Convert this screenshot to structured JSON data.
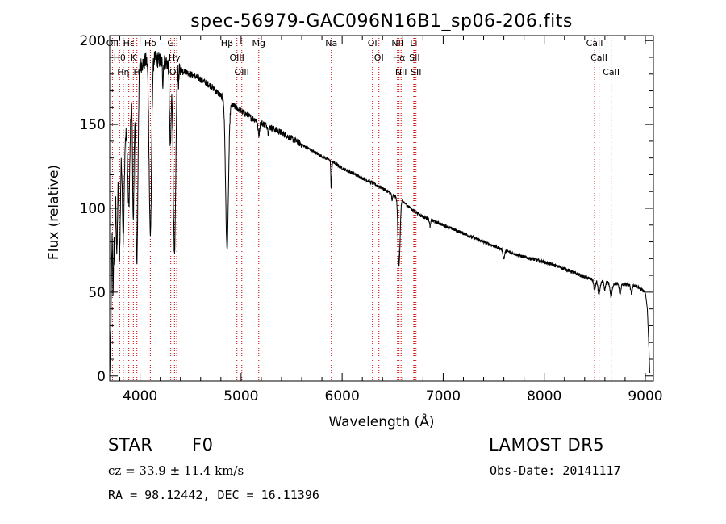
{
  "chart_data": {
    "type": "line",
    "title": "spec-56979-GAC096N16B1_sp06-206.fits",
    "xlabel": "Wavelength (Å)",
    "ylabel": "Flux (relative)",
    "xlim": [
      3700,
      9080
    ],
    "ylim": [
      -3,
      203
    ],
    "xticks": [
      4000,
      5000,
      6000,
      7000,
      8000,
      9000
    ],
    "yticks": [
      0,
      50,
      100,
      150,
      200
    ],
    "grid": false,
    "colors": {
      "spectrum": "#000000",
      "lines": "#cc0000"
    },
    "spectral_lines": [
      {
        "label": "OII",
        "wavelength": 3727
      },
      {
        "label": "Hθ",
        "wavelength": 3798
      },
      {
        "label": "Hη",
        "wavelength": 3835
      },
      {
        "label": "Hε",
        "wavelength": 3889
      },
      {
        "label": "K",
        "wavelength": 3934
      },
      {
        "label": "H",
        "wavelength": 3969
      },
      {
        "label": "Hδ",
        "wavelength": 4102
      },
      {
        "label": "G",
        "wavelength": 4304
      },
      {
        "label": "Hγ",
        "wavelength": 4341
      },
      {
        "label": "OIII",
        "wavelength": 4363
      },
      {
        "label": "Hβ",
        "wavelength": 4861
      },
      {
        "label": "OIII",
        "wavelength": 4959
      },
      {
        "label": "OIII",
        "wavelength": 5007
      },
      {
        "label": "Mg",
        "wavelength": 5175
      },
      {
        "label": "Na",
        "wavelength": 5893
      },
      {
        "label": "OI",
        "wavelength": 6300
      },
      {
        "label": "OI",
        "wavelength": 6364
      },
      {
        "label": "NII",
        "wavelength": 6548
      },
      {
        "label": "Hα",
        "wavelength": 6563
      },
      {
        "label": "NII",
        "wavelength": 6583
      },
      {
        "label": "Li",
        "wavelength": 6708
      },
      {
        "label": "SII",
        "wavelength": 6716
      },
      {
        "label": "SII",
        "wavelength": 6731
      },
      {
        "label": "CaII",
        "wavelength": 8498
      },
      {
        "label": "CaII",
        "wavelength": 8542
      },
      {
        "label": "CaII",
        "wavelength": 8662
      }
    ],
    "continuum": [
      [
        3700,
        0
      ],
      [
        3712,
        30
      ],
      [
        3725,
        95
      ],
      [
        3750,
        118
      ],
      [
        3800,
        128
      ],
      [
        3850,
        140
      ],
      [
        3900,
        160
      ],
      [
        3950,
        175
      ],
      [
        4000,
        185
      ],
      [
        4100,
        190
      ],
      [
        4200,
        188
      ],
      [
        4300,
        186
      ],
      [
        4400,
        183
      ],
      [
        4500,
        180
      ],
      [
        4600,
        177
      ],
      [
        4700,
        173
      ],
      [
        4800,
        167
      ],
      [
        4900,
        162
      ],
      [
        5000,
        158
      ],
      [
        5100,
        154
      ],
      [
        5200,
        151
      ],
      [
        5400,
        145
      ],
      [
        5600,
        138
      ],
      [
        5800,
        131
      ],
      [
        5900,
        128
      ],
      [
        6000,
        124
      ],
      [
        6200,
        118
      ],
      [
        6400,
        112
      ],
      [
        6600,
        104
      ],
      [
        6700,
        99
      ],
      [
        6800,
        95
      ],
      [
        7000,
        90
      ],
      [
        7200,
        85
      ],
      [
        7400,
        80
      ],
      [
        7600,
        75
      ],
      [
        7800,
        71
      ],
      [
        8000,
        68
      ],
      [
        8200,
        64
      ],
      [
        8400,
        59
      ],
      [
        8500,
        57
      ],
      [
        8700,
        55
      ],
      [
        8900,
        54
      ],
      [
        9000,
        50
      ],
      [
        9020,
        40
      ],
      [
        9035,
        18
      ],
      [
        9045,
        0
      ]
    ],
    "absorption": [
      {
        "w": 3734,
        "depth": 55,
        "width": 5
      },
      {
        "w": 3750,
        "depth": 50,
        "width": 5
      },
      {
        "w": 3771,
        "depth": 50,
        "width": 6
      },
      {
        "w": 3798,
        "depth": 55,
        "width": 7
      },
      {
        "w": 3835,
        "depth": 55,
        "width": 8
      },
      {
        "w": 3889,
        "depth": 55,
        "width": 10
      },
      {
        "w": 3934,
        "depth": 80,
        "width": 7
      },
      {
        "w": 3969,
        "depth": 110,
        "width": 10
      },
      {
        "w": 4102,
        "depth": 105,
        "width": 12
      },
      {
        "w": 4226,
        "depth": 12,
        "width": 4
      },
      {
        "w": 4300,
        "depth": 50,
        "width": 8
      },
      {
        "w": 4341,
        "depth": 115,
        "width": 12
      },
      {
        "w": 4383,
        "depth": 8,
        "width": 4
      },
      {
        "w": 4861,
        "depth": 88,
        "width": 14
      },
      {
        "w": 5175,
        "depth": 8,
        "width": 8
      },
      {
        "w": 5270,
        "depth": 4,
        "width": 5
      },
      {
        "w": 5890,
        "depth": 14,
        "width": 3
      },
      {
        "w": 5896,
        "depth": 10,
        "width": 3
      },
      {
        "w": 6495,
        "depth": 4,
        "width": 4
      },
      {
        "w": 6563,
        "depth": 40,
        "width": 10
      },
      {
        "w": 6870,
        "depth": 4,
        "width": 6
      },
      {
        "w": 7600,
        "depth": 5,
        "width": 8
      },
      {
        "w": 8498,
        "depth": 6,
        "width": 8
      },
      {
        "w": 8542,
        "depth": 8,
        "width": 10
      },
      {
        "w": 8598,
        "depth": 5,
        "width": 7
      },
      {
        "w": 8662,
        "depth": 8,
        "width": 10
      },
      {
        "w": 8750,
        "depth": 6,
        "width": 8
      },
      {
        "w": 8863,
        "depth": 5,
        "width": 8
      },
      {
        "w": 9014,
        "depth": 6,
        "width": 8
      }
    ]
  },
  "info": {
    "class_label": "STAR",
    "subclass": "F0",
    "survey": "LAMOST DR5",
    "cz": "cz = 33.9 ± 11.4 km/s",
    "obs_date": "Obs-Date: 20141117",
    "coords": "RA =  98.12442, DEC =  16.11396"
  }
}
